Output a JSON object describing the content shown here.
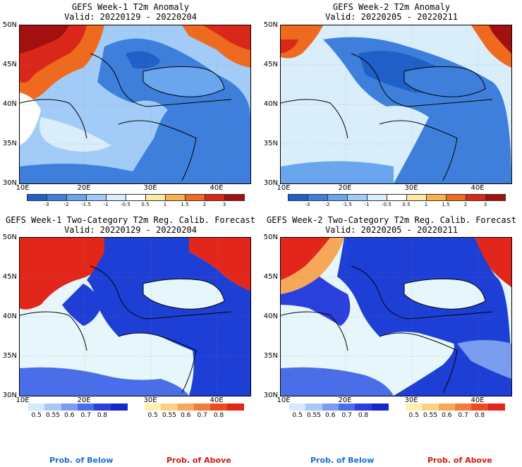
{
  "panels": [
    {
      "title": "GEFS Week-1 T2m Anomaly",
      "valid": "Valid: 20220129 - 20220204"
    },
    {
      "title": "GEFS Week-2 T2m Anomaly",
      "valid": "Valid: 20220205 - 20220211"
    },
    {
      "title": "GEFS Week-1 Two-Category T2m Reg. Calib. Forecast",
      "valid": "Valid: 20220129 - 20220204"
    },
    {
      "title": "GEFS Week-2 Two-Category T2m Reg. Calib. Forecast",
      "valid": "Valid: 20220205 - 20220211"
    }
  ],
  "lat_labels": [
    "50N",
    "45N",
    "40N",
    "35N",
    "30N"
  ],
  "lon_labels": [
    "10E",
    "20E",
    "30E",
    "40E"
  ],
  "anomaly_scale": {
    "labels": [
      "-3",
      "-2",
      "-1.5",
      "-1",
      "-0.5",
      "0.5",
      "1",
      "1.5",
      "2",
      "3"
    ],
    "colors": [
      "#1f5fc8",
      "#3f7fdc",
      "#6aa6ee",
      "#a3cbf7",
      "#d9edfb",
      "#ffffff",
      "#fde9a3",
      "#f7b24a",
      "#ee6a1f",
      "#d9281a",
      "#a40f10"
    ]
  },
  "prob_below": {
    "labels": [
      "0.5",
      "0.55",
      "0.6",
      "0.7",
      "0.8"
    ],
    "colors": [
      "#d6e8fb",
      "#a9c8f5",
      "#7a9df0",
      "#4a6de8",
      "#2a40dd",
      "#1528c9"
    ],
    "caption": "Prob. of Below"
  },
  "prob_above": {
    "labels": [
      "0.5",
      "0.55",
      "0.6",
      "0.7",
      "0.8"
    ],
    "colors": [
      "#fdf0b0",
      "#fbd283",
      "#f6a85a",
      "#f27d3a",
      "#ee4a22",
      "#e3261a"
    ],
    "caption": "Prob. of Above"
  },
  "colors": {
    "land_dark_blue": "#1e3fd6",
    "sea_light": "#e6f6fb",
    "warm_red": "#d9281a",
    "caption_below": "#1a6fd6",
    "caption_above": "#d11a10"
  }
}
